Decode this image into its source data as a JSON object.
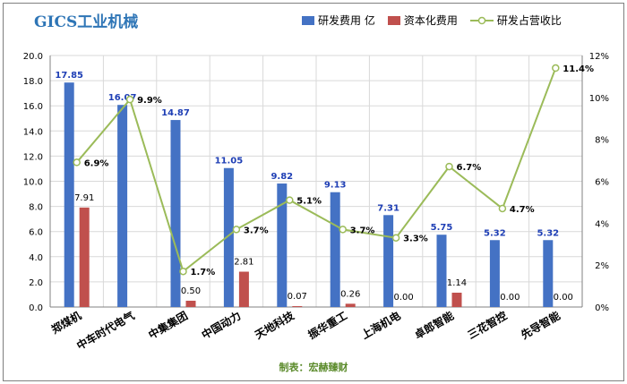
{
  "chart_data": {
    "type": "bar",
    "title": "GICS工业机械",
    "categories": [
      "郑煤机",
      "中车时代电气",
      "中集集团",
      "中国动力",
      "天地科技",
      "振华重工",
      "上海机电",
      "卓郎智能",
      "三花智控",
      "先导智能"
    ],
    "series": [
      {
        "name": "研发费用 亿",
        "type": "bar",
        "axis": "left",
        "color": "#4472C4",
        "values": [
          17.85,
          16.07,
          14.87,
          11.05,
          9.82,
          9.13,
          7.31,
          5.75,
          5.32,
          5.32
        ],
        "labels": [
          "17.85",
          "16.07",
          "14.87",
          "11.05",
          "9.82",
          "9.13",
          "7.31",
          "5.75",
          "5.32",
          "5.32"
        ]
      },
      {
        "name": "资本化费用",
        "type": "bar",
        "axis": "left",
        "color": "#C0504D",
        "values": [
          7.91,
          0.0,
          0.5,
          2.81,
          0.07,
          0.26,
          0.0,
          1.14,
          0.0,
          0.0
        ],
        "labels": [
          "7.91",
          "",
          "0.50",
          "2.81",
          "0.07",
          "0.26",
          "0.00",
          "1.14",
          "0.00",
          "0.00"
        ]
      },
      {
        "name": "研发占营收比",
        "type": "line",
        "axis": "right",
        "color": "#9BBB59",
        "values": [
          6.9,
          9.9,
          1.7,
          3.7,
          5.1,
          3.7,
          3.3,
          6.7,
          4.7,
          11.4
        ],
        "labels": [
          "6.9%",
          "9.9%",
          "1.7%",
          "3.7%",
          "5.1%",
          "3.7%",
          "3.3%",
          "6.7%",
          "4.7%",
          "11.4%"
        ]
      }
    ],
    "ylim_left": [
      0,
      20
    ],
    "yticks_left": [
      "0.0",
      "2.0",
      "4.0",
      "6.0",
      "8.0",
      "10.0",
      "12.0",
      "14.0",
      "16.0",
      "18.0",
      "20.0"
    ],
    "ylim_right": [
      0,
      12
    ],
    "yticks_right": [
      "0%",
      "2%",
      "4%",
      "6%",
      "8%",
      "10%",
      "12%"
    ],
    "grid": true,
    "legend": "top-right"
  },
  "footer": "制表：宏赫臻财"
}
